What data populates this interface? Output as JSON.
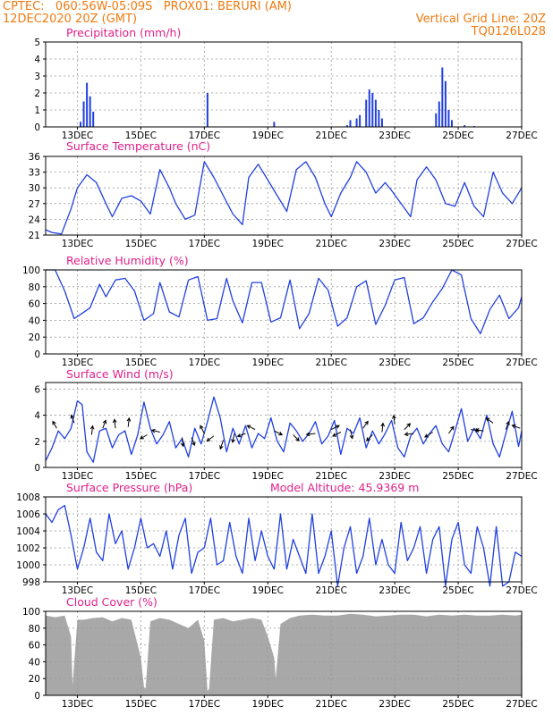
{
  "header": {
    "left_line1": "CPTEC:   060:56W-05:09S   PROX01: BERURI (AM)",
    "left_line2": "12DEC2020 20Z (GMT)",
    "right_line1": "Vertical Grid Line: 20Z",
    "right_line2": "TQ0126L028"
  },
  "colors": {
    "series": "#2040e0",
    "cloud": "#a8a8a8",
    "grid": "#999999",
    "title": "#e0208a",
    "header": "#f07a10"
  },
  "chart_data": [
    {
      "id": "precip",
      "type": "bar",
      "title": "Precipitation (mm/h)",
      "ylim": [
        0,
        5
      ],
      "yticks": [
        0,
        1,
        2,
        3,
        4,
        5
      ],
      "xlim": [
        0,
        15
      ],
      "xticks": [
        1,
        3,
        5,
        7,
        9,
        11,
        13,
        15
      ],
      "xticklabels": [
        "13DEC",
        "15DEC",
        "17DEC",
        "19DEC",
        "21DEC",
        "23DEC",
        "25DEC",
        "27DEC"
      ],
      "x": [
        1.1,
        1.2,
        1.3,
        1.4,
        1.5,
        5.1,
        7.2,
        9.5,
        9.6,
        9.8,
        9.9,
        10.1,
        10.2,
        10.3,
        10.4,
        10.5,
        10.6,
        12.3,
        12.4,
        12.5,
        12.6,
        12.7,
        12.8,
        13.2,
        13.5
      ],
      "values": [
        0.3,
        1.5,
        2.6,
        1.8,
        0.9,
        2.0,
        0.3,
        0.1,
        0.4,
        0.5,
        0.7,
        1.6,
        2.2,
        2.0,
        1.6,
        1.0,
        0.5,
        0.8,
        1.5,
        3.5,
        2.7,
        1.0,
        0.4,
        0.1,
        0.05
      ]
    },
    {
      "id": "temp",
      "type": "line",
      "title": "Surface Temperature (nC)",
      "ylim": [
        21,
        36
      ],
      "yticks": [
        21,
        24,
        27,
        30,
        33,
        36
      ],
      "xlim": [
        0,
        15
      ],
      "xticks": [
        1,
        3,
        5,
        7,
        9,
        11,
        13,
        15
      ],
      "xticklabels": [
        "13DEC",
        "15DEC",
        "17DEC",
        "19DEC",
        "21DEC",
        "23DEC",
        "25DEC",
        "27DEC"
      ],
      "x": [
        0,
        0.2,
        0.5,
        0.8,
        1.0,
        1.3,
        1.6,
        1.9,
        2.1,
        2.4,
        2.7,
        3.0,
        3.3,
        3.6,
        3.9,
        4.1,
        4.4,
        4.7,
        5.0,
        5.3,
        5.6,
        5.9,
        6.2,
        6.4,
        6.7,
        7.0,
        7.3,
        7.6,
        7.9,
        8.2,
        8.5,
        8.8,
        9.0,
        9.3,
        9.6,
        9.8,
        10.1,
        10.4,
        10.7,
        10.9,
        11.2,
        11.5,
        11.7,
        12.0,
        12.3,
        12.6,
        12.9,
        13.2,
        13.5,
        13.8,
        14.1,
        14.4,
        14.7,
        15.0
      ],
      "values": [
        22,
        21.5,
        21.2,
        26,
        30,
        32.5,
        31,
        27,
        24.5,
        28,
        28.5,
        27.5,
        25,
        33.5,
        30,
        27,
        24,
        24.8,
        35,
        32,
        28.5,
        25,
        23,
        32,
        34.5,
        31.5,
        28.5,
        25.5,
        33.5,
        35,
        32,
        27,
        24.5,
        29,
        32,
        35,
        33,
        29,
        31,
        29.5,
        27,
        24.5,
        31.5,
        34,
        31.5,
        27,
        26.5,
        31,
        26.5,
        24.5,
        33,
        29,
        27,
        30
      ]
    },
    {
      "id": "rh",
      "type": "line",
      "title": "Relative Humidity (%)",
      "ylim": [
        0,
        100
      ],
      "yticks": [
        0,
        20,
        40,
        60,
        80,
        100
      ],
      "xlim": [
        0,
        15
      ],
      "xticks": [
        1,
        3,
        5,
        7,
        9,
        11,
        13,
        15
      ],
      "xticklabels": [
        "13DEC",
        "15DEC",
        "17DEC",
        "19DEC",
        "21DEC",
        "23DEC",
        "25DEC",
        "27DEC"
      ],
      "x": [
        0,
        0.3,
        0.6,
        0.9,
        1.1,
        1.4,
        1.7,
        1.9,
        2.2,
        2.5,
        2.8,
        3.1,
        3.4,
        3.6,
        3.9,
        4.2,
        4.5,
        4.8,
        5.1,
        5.4,
        5.7,
        5.9,
        6.2,
        6.5,
        6.8,
        7.1,
        7.4,
        7.7,
        8.0,
        8.3,
        8.6,
        8.9,
        9.2,
        9.5,
        9.8,
        10.1,
        10.4,
        10.7,
        11.0,
        11.3,
        11.6,
        11.9,
        12.2,
        12.5,
        12.8,
        13.1,
        13.4,
        13.7,
        14.0,
        14.3,
        14.6,
        14.9,
        15.0
      ],
      "values": [
        100,
        100,
        75,
        42,
        47,
        55,
        83,
        68,
        88,
        90,
        75,
        40,
        48,
        85,
        50,
        44,
        88,
        92,
        40,
        42,
        90,
        63,
        37,
        85,
        85,
        38,
        43,
        88,
        30,
        48,
        90,
        76,
        33,
        43,
        80,
        87,
        35,
        58,
        88,
        91,
        36,
        43,
        62,
        78,
        100,
        94,
        42,
        24,
        53,
        70,
        42,
        55,
        68
      ]
    },
    {
      "id": "wind",
      "type": "line",
      "title": "Surface Wind (m/s)",
      "ylim": [
        0,
        6.5
      ],
      "yticks": [
        0,
        2,
        4,
        6
      ],
      "xlim": [
        0,
        15
      ],
      "xticks": [
        1,
        3,
        5,
        7,
        9,
        11,
        13,
        15
      ],
      "xticklabels": [
        "13DEC",
        "15DEC",
        "17DEC",
        "19DEC",
        "21DEC",
        "23DEC",
        "25DEC",
        "27DEC"
      ],
      "x": [
        0,
        0.2,
        0.4,
        0.6,
        0.8,
        1.0,
        1.15,
        1.3,
        1.5,
        1.7,
        1.9,
        2.1,
        2.3,
        2.5,
        2.7,
        2.9,
        3.1,
        3.3,
        3.5,
        3.7,
        3.9,
        4.1,
        4.3,
        4.5,
        4.7,
        4.9,
        5.1,
        5.3,
        5.5,
        5.7,
        5.9,
        6.1,
        6.3,
        6.5,
        6.7,
        6.9,
        7.1,
        7.3,
        7.5,
        7.7,
        7.9,
        8.1,
        8.3,
        8.5,
        8.7,
        8.9,
        9.1,
        9.3,
        9.5,
        9.7,
        9.9,
        10.1,
        10.3,
        10.5,
        10.7,
        10.9,
        11.1,
        11.3,
        11.5,
        11.7,
        11.9,
        12.1,
        12.3,
        12.5,
        12.7,
        12.9,
        13.1,
        13.3,
        13.5,
        13.7,
        13.9,
        14.1,
        14.3,
        14.5,
        14.7,
        14.9,
        15.0
      ],
      "values": [
        0.5,
        1.5,
        2.8,
        2.2,
        3.0,
        5.1,
        4.8,
        1.2,
        0.4,
        2.8,
        3.0,
        1.5,
        2.5,
        2.8,
        1.0,
        2.5,
        5.0,
        3.0,
        1.8,
        2.5,
        3.5,
        1.5,
        2.2,
        0.8,
        3.0,
        1.8,
        3.5,
        5.4,
        3.8,
        1.2,
        3.0,
        1.8,
        3.2,
        1.5,
        2.6,
        2.2,
        3.8,
        2.0,
        1.2,
        3.4,
        2.8,
        2.0,
        2.6,
        3.5,
        1.8,
        2.4,
        3.6,
        1.0,
        3.0,
        2.6,
        3.8,
        1.5,
        2.8,
        1.8,
        2.6,
        3.6,
        1.5,
        0.8,
        2.4,
        3.0,
        1.8,
        2.6,
        3.2,
        1.8,
        1.2,
        2.8,
        4.5,
        2.0,
        3.0,
        2.2,
        4.0,
        1.8,
        0.8,
        2.6,
        4.3,
        1.6,
        2.8
      ],
      "arrows": [
        {
          "x": 0.35,
          "y": 3.0,
          "u": -0.4,
          "v": 0.7
        },
        {
          "x": 0.9,
          "y": 3.4,
          "u": -0.3,
          "v": 0.8
        },
        {
          "x": 1.45,
          "y": 2.5,
          "u": 0.1,
          "v": 0.9
        },
        {
          "x": 1.8,
          "y": 3.0,
          "u": 0.3,
          "v": 0.8
        },
        {
          "x": 2.2,
          "y": 3.0,
          "u": -0.1,
          "v": 0.9
        },
        {
          "x": 2.6,
          "y": 3.1,
          "u": 0.1,
          "v": 0.9
        },
        {
          "x": 3.2,
          "y": 2.5,
          "u": -0.7,
          "v": -0.4
        },
        {
          "x": 3.6,
          "y": 2.7,
          "u": -0.8,
          "v": 0.2
        },
        {
          "x": 4.3,
          "y": 2.3,
          "u": 0.1,
          "v": -0.9
        },
        {
          "x": 4.6,
          "y": 2.3,
          "u": 0.3,
          "v": -0.8
        },
        {
          "x": 5.0,
          "y": 2.6,
          "u": -0.4,
          "v": 0.8
        },
        {
          "x": 5.3,
          "y": 2.4,
          "u": -0.7,
          "v": -0.5
        },
        {
          "x": 5.6,
          "y": 2.1,
          "u": -0.3,
          "v": -0.9
        },
        {
          "x": 5.95,
          "y": 2.6,
          "u": -0.2,
          "v": -0.9
        },
        {
          "x": 6.3,
          "y": 2.6,
          "u": -0.8,
          "v": -0.3
        },
        {
          "x": 6.6,
          "y": 2.9,
          "u": -0.8,
          "v": 0.4
        },
        {
          "x": 7.2,
          "y": 2.8,
          "u": 0.8,
          "v": -0.4
        },
        {
          "x": 7.8,
          "y": 2.5,
          "u": 0.6,
          "v": -0.6
        },
        {
          "x": 8.5,
          "y": 2.6,
          "u": -0.9,
          "v": -0.1
        },
        {
          "x": 9.0,
          "y": 2.9,
          "u": 0.8,
          "v": 0.4
        },
        {
          "x": 9.3,
          "y": 2.7,
          "u": -0.8,
          "v": -0.4
        },
        {
          "x": 9.6,
          "y": 2.9,
          "u": 0.2,
          "v": -0.9
        },
        {
          "x": 10.0,
          "y": 3.0,
          "u": 0.5,
          "v": 0.7
        },
        {
          "x": 10.3,
          "y": 2.5,
          "u": -0.6,
          "v": -0.6
        },
        {
          "x": 10.6,
          "y": 2.7,
          "u": 0.1,
          "v": 0.9
        },
        {
          "x": 11.0,
          "y": 3.3,
          "u": -0.1,
          "v": 0.9
        },
        {
          "x": 11.3,
          "y": 2.9,
          "u": 0.6,
          "v": 0.6
        },
        {
          "x": 11.6,
          "y": 2.6,
          "u": -0.9,
          "v": -0.1
        },
        {
          "x": 12.2,
          "y": 2.7,
          "u": -0.8,
          "v": -0.5
        },
        {
          "x": 12.7,
          "y": 2.6,
          "u": 0.5,
          "v": 0.7
        },
        {
          "x": 13.4,
          "y": 2.9,
          "u": 0.8,
          "v": -0.1
        },
        {
          "x": 13.8,
          "y": 2.8,
          "u": -0.8,
          "v": 0.1
        },
        {
          "x": 14.1,
          "y": 3.4,
          "u": -0.7,
          "v": 0.5
        },
        {
          "x": 14.5,
          "y": 2.9,
          "u": 0.3,
          "v": 0.8
        },
        {
          "x": 14.95,
          "y": 3.0,
          "u": -0.8,
          "v": 0.3
        }
      ]
    },
    {
      "id": "pres",
      "type": "line",
      "title": "Surface Pressure (hPa)",
      "annotation": "Model Altitude: 45.9369  m",
      "ylim": [
        998,
        1008
      ],
      "yticks": [
        998,
        1000,
        1002,
        1004,
        1006,
        1008
      ],
      "xlim": [
        0,
        15
      ],
      "xticks": [
        1,
        3,
        5,
        7,
        9,
        11,
        13,
        15
      ],
      "xticklabels": [
        "13DEC",
        "15DEC",
        "17DEC",
        "19DEC",
        "21DEC",
        "23DEC",
        "25DEC",
        "27DEC"
      ],
      "x": [
        0,
        0.2,
        0.4,
        0.6,
        0.8,
        1.0,
        1.2,
        1.4,
        1.6,
        1.8,
        2.0,
        2.2,
        2.4,
        2.6,
        2.8,
        3.0,
        3.2,
        3.4,
        3.6,
        3.8,
        4.0,
        4.2,
        4.4,
        4.6,
        4.8,
        5.0,
        5.2,
        5.4,
        5.6,
        5.8,
        6.0,
        6.2,
        6.4,
        6.6,
        6.8,
        7.0,
        7.2,
        7.4,
        7.6,
        7.8,
        8.0,
        8.2,
        8.4,
        8.6,
        8.8,
        9.0,
        9.2,
        9.4,
        9.6,
        9.8,
        10.0,
        10.2,
        10.4,
        10.6,
        10.8,
        11.0,
        11.2,
        11.4,
        11.6,
        11.8,
        12.0,
        12.2,
        12.4,
        12.6,
        12.8,
        13.0,
        13.2,
        13.4,
        13.6,
        13.8,
        14.0,
        14.2,
        14.4,
        14.6,
        14.8,
        15.0
      ],
      "values": [
        1006,
        1005,
        1006.5,
        1007,
        1003.5,
        999.5,
        1002,
        1005.5,
        1001.5,
        1000.5,
        1006,
        1002.5,
        1004,
        999.5,
        1002,
        1005.5,
        1002,
        1002.5,
        1001,
        1004,
        999.5,
        1003.5,
        1005.5,
        999,
        1001.5,
        1002,
        1005.5,
        1000,
        1000.5,
        1005,
        1001,
        999,
        1005.5,
        1000.5,
        1004,
        1001,
        999.5,
        1006,
        999.5,
        1003,
        1001,
        999,
        1006,
        999,
        1001,
        1004,
        997.5,
        1002,
        1004.5,
        999,
        1001,
        1005.5,
        1000,
        1003,
        1000,
        999,
        1005,
        1000.5,
        1002,
        1004.5,
        999,
        1003,
        1004.5,
        997.5,
        1003,
        1005,
        1000,
        999,
        1004.5,
        1002,
        997.5,
        1004.5,
        997.5,
        998,
        1001.5,
        1001
      ]
    },
    {
      "id": "cloud",
      "type": "area",
      "title": "Cloud Cover (%)",
      "ylim": [
        0,
        100
      ],
      "yticks": [
        0,
        20,
        40,
        60,
        80,
        100
      ],
      "xlim": [
        0,
        15
      ],
      "xticks": [
        1,
        3,
        5,
        7,
        9,
        11,
        13,
        15
      ],
      "xticklabels": [
        "13DEC",
        "15DEC",
        "17DEC",
        "19DEC",
        "21DEC",
        "23DEC",
        "25DEC",
        "27DEC"
      ],
      "x": [
        0,
        0.3,
        0.6,
        0.8,
        0.85,
        1.0,
        1.2,
        1.5,
        1.8,
        2.1,
        2.4,
        2.7,
        3.0,
        3.1,
        3.15,
        3.3,
        3.6,
        3.9,
        4.2,
        4.5,
        4.8,
        5.0,
        5.1,
        5.15,
        5.3,
        5.6,
        5.9,
        6.2,
        6.5,
        6.8,
        7.0,
        7.2,
        7.25,
        7.4,
        7.7,
        8.0,
        8.4,
        8.8,
        9.2,
        9.6,
        10.0,
        10.4,
        10.8,
        11.2,
        11.6,
        12.0,
        12.4,
        12.8,
        13.2,
        13.6,
        14.0,
        14.4,
        14.8,
        15.0
      ],
      "values": [
        95,
        93,
        95,
        70,
        12,
        90,
        90,
        92,
        93,
        88,
        92,
        90,
        45,
        10,
        8,
        88,
        92,
        90,
        85,
        80,
        90,
        65,
        5,
        8,
        90,
        92,
        88,
        90,
        92,
        90,
        70,
        45,
        20,
        85,
        92,
        95,
        96,
        95,
        95,
        97,
        96,
        94,
        95,
        96,
        96,
        94,
        96,
        95,
        96,
        95,
        95,
        96,
        95,
        96
      ]
    }
  ]
}
